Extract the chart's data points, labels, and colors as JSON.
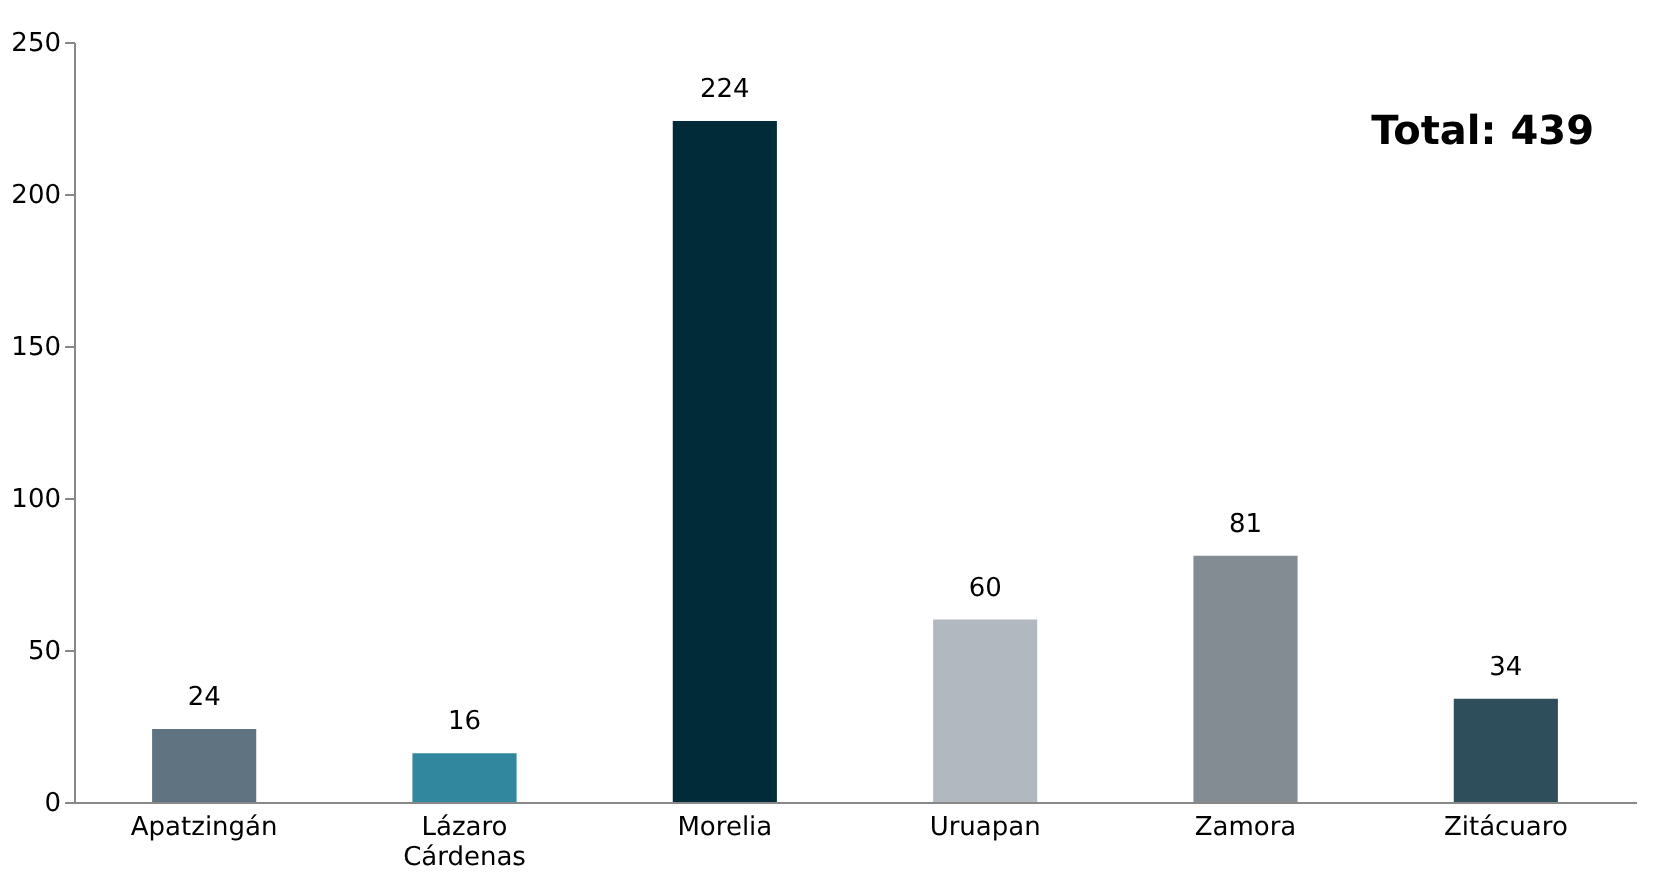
{
  "chart_data": {
    "type": "bar",
    "categories": [
      "Apatzingán",
      "Lázaro Cárdenas",
      "Morelia",
      "Uruapan",
      "Zamora",
      "Zitácuaro"
    ],
    "values": [
      24,
      16,
      224,
      60,
      81,
      34
    ],
    "colors": [
      "#607380",
      "#31879e",
      "#022b3a",
      "#b1b8bf",
      "#838b93",
      "#2f4e5c"
    ],
    "ylim": [
      0,
      250
    ],
    "yticks": [
      0,
      50,
      100,
      150,
      200,
      250
    ],
    "data_labels": true,
    "grid": false,
    "annotations": [
      "Total: 439"
    ]
  }
}
